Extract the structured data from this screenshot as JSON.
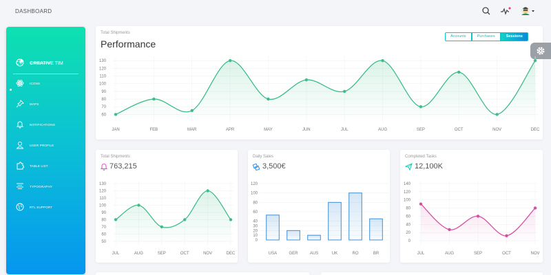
{
  "header": {
    "title": "DASHBOARD"
  },
  "topbar_icons": [
    "search-icon",
    "activity-icon",
    "avatar"
  ],
  "sidebar": {
    "logo_mini": "CT",
    "logo_full": "CREATIVE TIM",
    "items": [
      {
        "label": "DASHBOARD",
        "icon": "chart-pie-icon",
        "active": true
      },
      {
        "label": "ICONS",
        "icon": "atom-icon"
      },
      {
        "label": "MAPS",
        "icon": "pin-icon"
      },
      {
        "label": "NOTIFICATIONS",
        "icon": "bell-icon"
      },
      {
        "label": "USER PROFILE",
        "icon": "user-icon"
      },
      {
        "label": "TABLE LIST",
        "icon": "puzzle-icon"
      },
      {
        "label": "TYPOGRAPHY",
        "icon": "align-icon"
      },
      {
        "label": "RTL SUPPORT",
        "icon": "world-icon"
      }
    ]
  },
  "performance": {
    "subtitle": "Total Shipments",
    "title": "Performance",
    "tabs": [
      "Accounts",
      "Purchases",
      "Sessions"
    ],
    "active_tab": "Sessions"
  },
  "shipments_card": {
    "subtitle": "Total Shipments",
    "value": "763,215",
    "icon": "bell-icon"
  },
  "sales_card": {
    "subtitle": "Daily Sales",
    "value": "3,500€",
    "icon": "delivery-icon"
  },
  "tasks_card": {
    "subtitle": "Completed Tasks",
    "value": "12,100K",
    "icon": "send-icon"
  },
  "colors": {
    "green": "#3dbd89",
    "blue": "#3e8fd8",
    "pink": "#d84fa2",
    "accent": "#17c1c1"
  },
  "chart_data": [
    {
      "type": "line",
      "title": "Performance",
      "categories": [
        "JAN",
        "FEB",
        "MAR",
        "APR",
        "MAY",
        "JUN",
        "JUL",
        "AUG",
        "SEP",
        "OCT",
        "NOV",
        "DEC"
      ],
      "values": [
        60,
        80,
        65,
        130,
        80,
        105,
        90,
        130,
        70,
        115,
        60,
        130
      ],
      "yticks": [
        60,
        70,
        80,
        90,
        100,
        110,
        120,
        130
      ],
      "ylim": [
        55,
        132
      ],
      "grid": true
    },
    {
      "type": "line",
      "title": "763,215",
      "categories": [
        "JUL",
        "AUG",
        "SEP",
        "OCT",
        "NOV",
        "DEC"
      ],
      "values": [
        80,
        100,
        70,
        80,
        120,
        80
      ],
      "yticks": [
        50,
        60,
        70,
        80,
        90,
        100,
        110,
        120,
        130
      ],
      "ylim": [
        50,
        130
      ],
      "grid": true
    },
    {
      "type": "bar",
      "title": "3,500€",
      "categories": [
        "USA",
        "GER",
        "AUS",
        "UK",
        "RO",
        "BR"
      ],
      "values": [
        53,
        20,
        10,
        80,
        100,
        45
      ],
      "yticks": [
        0,
        10,
        20,
        30,
        40,
        60,
        80,
        100,
        120
      ],
      "ylim": [
        0,
        120
      ],
      "grid": true
    },
    {
      "type": "line",
      "title": "12,100K",
      "categories": [
        "JUL",
        "AUG",
        "SEP",
        "OCT",
        "NOV"
      ],
      "values": [
        90,
        27,
        60,
        12,
        80
      ],
      "yticks": [
        0,
        20,
        40,
        60,
        80,
        100,
        120,
        140
      ],
      "ylim": [
        0,
        140
      ],
      "grid": true
    }
  ]
}
